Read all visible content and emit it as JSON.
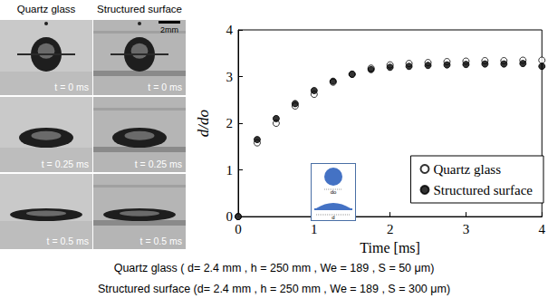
{
  "figure": {
    "panels": {
      "columns": [
        "Quartz glass",
        "Structured surface"
      ],
      "scale_bar": "2mm",
      "times": [
        "t = 0 ms",
        "t = 0.25 ms",
        "t = 0.5 ms"
      ]
    },
    "inset": {
      "labels": [
        "do",
        "d"
      ]
    },
    "caption": [
      "Quartz glass ( d= 2.4 mm , h = 250 mm , We = 189 , S = 50 μm)",
      "Structured surface (d= 2.4 mm , h = 250 mm , We = 189 , S = 300 μm)"
    ]
  },
  "chart_data": {
    "type": "scatter",
    "x_label": "Time [ms]",
    "y_label": "d/do",
    "x": [
      0,
      0.25,
      0.5,
      0.75,
      1.0,
      1.25,
      1.5,
      1.75,
      2.0,
      2.25,
      2.5,
      2.75,
      3.0,
      3.25,
      3.5,
      3.75,
      4.0
    ],
    "series": [
      {
        "name": "Quartz glass",
        "color": "#000000",
        "marker": "open_circle",
        "values": [
          0,
          1.58,
          2.0,
          2.37,
          2.62,
          2.88,
          3.05,
          3.18,
          3.25,
          3.28,
          3.3,
          3.32,
          3.33,
          3.34,
          3.34,
          3.35,
          3.35
        ]
      },
      {
        "name": "Structured surface",
        "color": "#000000",
        "marker": "circle",
        "values": [
          0,
          1.65,
          2.1,
          2.42,
          2.7,
          2.9,
          3.05,
          3.15,
          3.2,
          3.22,
          3.24,
          3.25,
          3.26,
          3.27,
          3.27,
          3.28,
          3.22
        ]
      }
    ],
    "xlim": [
      0,
      4
    ],
    "xticks": [
      0,
      1,
      2,
      3,
      4
    ],
    "ylim": [
      0,
      4
    ],
    "yticks": [
      0,
      1,
      2,
      3,
      4
    ],
    "grid": false,
    "legend": "lower right"
  }
}
